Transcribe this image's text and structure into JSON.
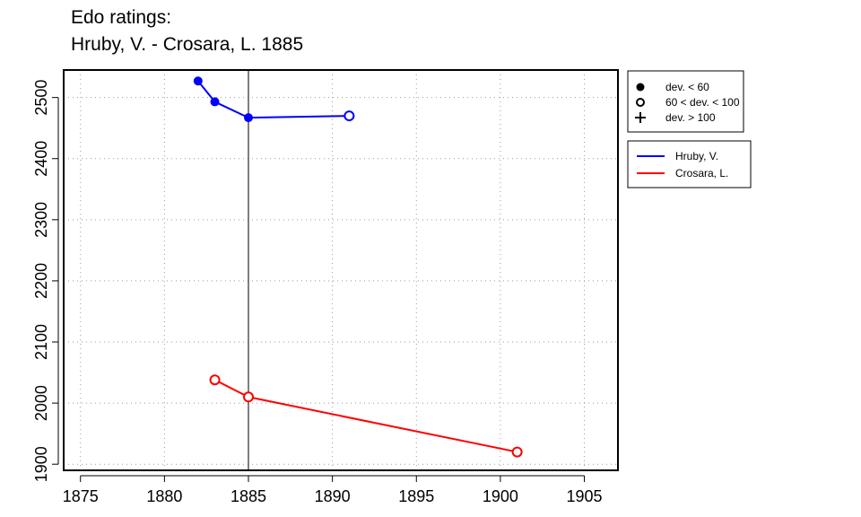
{
  "title": {
    "line1": "Edo ratings:",
    "line2": "Hruby, V. - Crosara, L. 1885"
  },
  "chart_data": {
    "type": "line",
    "title": "Edo ratings: Hruby, V. - Crosara, L. 1885",
    "xlabel": "",
    "ylabel": "",
    "xlim": [
      1874,
      1907
    ],
    "ylim": [
      1890,
      2545
    ],
    "x_ticks": [
      1875,
      1880,
      1885,
      1890,
      1895,
      1900,
      1905
    ],
    "y_ticks": [
      1900,
      2000,
      2100,
      2200,
      2300,
      2400,
      2500
    ],
    "grid": true,
    "reference_line_x": 1885,
    "series": [
      {
        "name": "Hruby, V.",
        "color": "#0000ff",
        "points": [
          {
            "x": 1882,
            "y": 2527,
            "marker": "filled"
          },
          {
            "x": 1883,
            "y": 2493,
            "marker": "filled"
          },
          {
            "x": 1885,
            "y": 2467,
            "marker": "filled"
          },
          {
            "x": 1891,
            "y": 2470,
            "marker": "open"
          }
        ]
      },
      {
        "name": "Crosara, L.",
        "color": "#ff0000",
        "points": [
          {
            "x": 1883,
            "y": 2038,
            "marker": "open"
          },
          {
            "x": 1885,
            "y": 2010,
            "marker": "open"
          },
          {
            "x": 1901,
            "y": 1920,
            "marker": "open"
          }
        ]
      }
    ],
    "marker_legend": [
      {
        "symbol": "filled",
        "label": "dev. < 60"
      },
      {
        "symbol": "open",
        "label": "60 < dev. < 100"
      },
      {
        "symbol": "plus",
        "label": "dev. > 100"
      }
    ],
    "legend_position": "right"
  }
}
